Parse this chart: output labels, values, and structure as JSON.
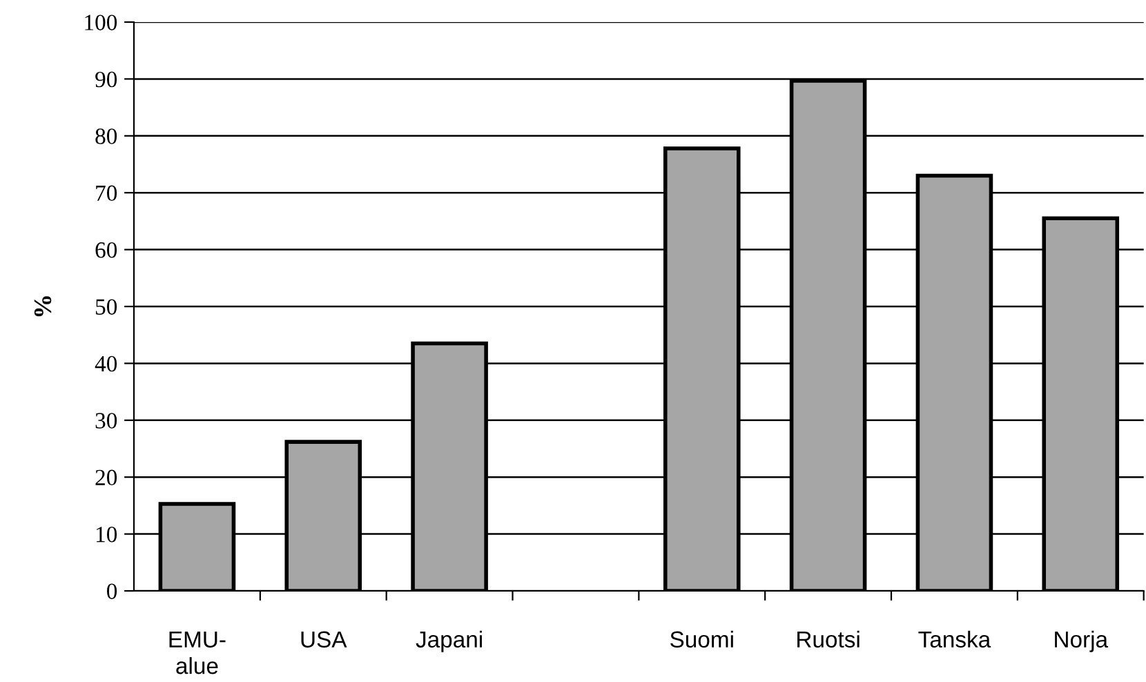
{
  "chart_data": {
    "type": "bar",
    "ylabel": "%",
    "categories": [
      "EMU-\nalue",
      "USA",
      "Japani",
      null,
      "Suomi",
      "Ruotsi",
      "Tanska",
      "Norja"
    ],
    "values": [
      15.3,
      26.2,
      43.5,
      null,
      77.8,
      89.7,
      73.0,
      65.5
    ],
    "color": "#a6a6a6",
    "ylim": [
      0,
      100
    ],
    "yticks": [
      0,
      10,
      20,
      30,
      40,
      50,
      60,
      70,
      80,
      90,
      100
    ],
    "grid": "y"
  }
}
